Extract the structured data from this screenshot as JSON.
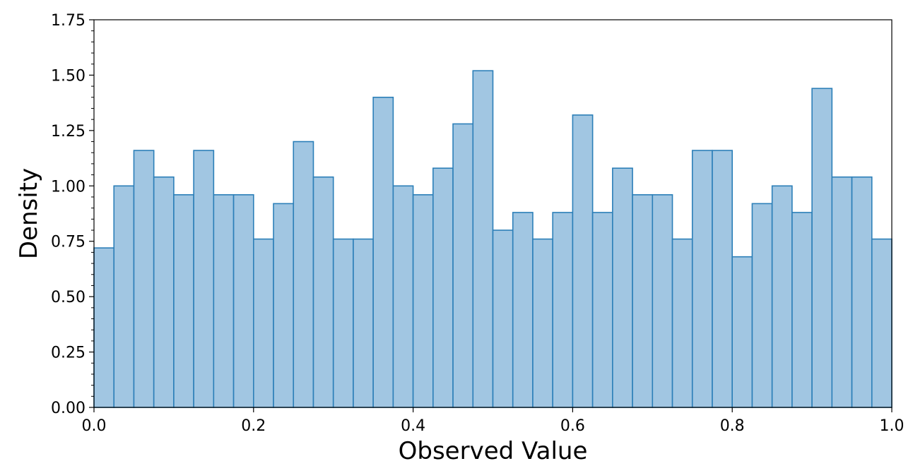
{
  "chart_data": {
    "type": "histogram",
    "xlabel": "Observed Value",
    "ylabel": "Density",
    "xlim": [
      0.0,
      1.0
    ],
    "ylim": [
      0.0,
      1.75
    ],
    "x_ticks": [
      "0.0",
      "0.2",
      "0.4",
      "0.6",
      "0.8",
      "1.0"
    ],
    "y_ticks": [
      "0.00",
      "0.25",
      "0.50",
      "0.75",
      "1.00",
      "1.25",
      "1.50",
      "1.75"
    ],
    "bin_width": 0.025,
    "bin_start": 0.0,
    "values": [
      0.72,
      1.0,
      1.16,
      1.04,
      0.96,
      1.16,
      0.96,
      0.96,
      0.76,
      0.92,
      1.2,
      1.04,
      0.76,
      0.76,
      1.4,
      1.0,
      0.96,
      1.08,
      1.28,
      1.52,
      0.8,
      0.88,
      0.76,
      0.88,
      1.32,
      0.88,
      1.08,
      0.96,
      0.96,
      0.76,
      1.16,
      1.16,
      0.68,
      0.92,
      1.0,
      0.88,
      1.44,
      1.04,
      1.04,
      0.76
    ],
    "bar_fill": "#a1c6e2",
    "bar_edge": "#2c7fb8",
    "grid": false
  }
}
